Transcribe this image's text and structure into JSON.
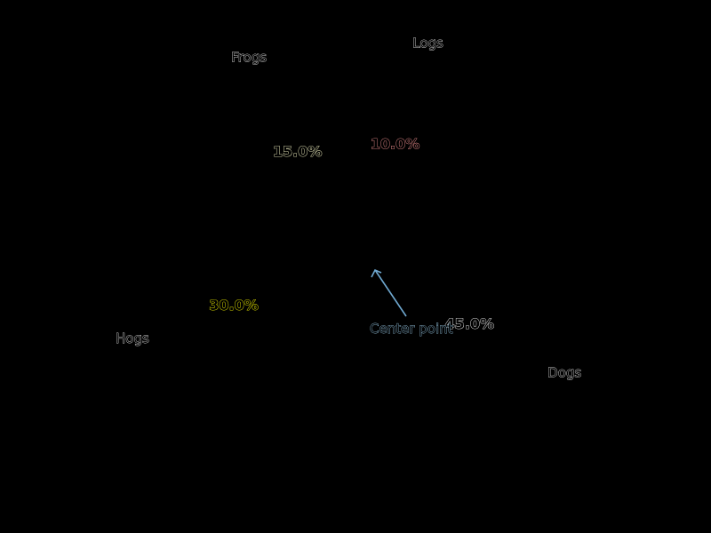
{
  "chart_data": {
    "type": "pie",
    "title": "",
    "categories": [
      "Frogs",
      "Hogs",
      "Dogs",
      "Logs"
    ],
    "values": [
      15,
      30,
      45,
      10
    ],
    "percent_labels": [
      "15.0%",
      "30.0%",
      "45.0%",
      "10.0%"
    ],
    "colors": [
      "#ffffcc",
      "#ffff00",
      "#ffffff",
      "#ff9999"
    ],
    "background": "#000000",
    "annotation": {
      "text": "Center point"
    }
  }
}
